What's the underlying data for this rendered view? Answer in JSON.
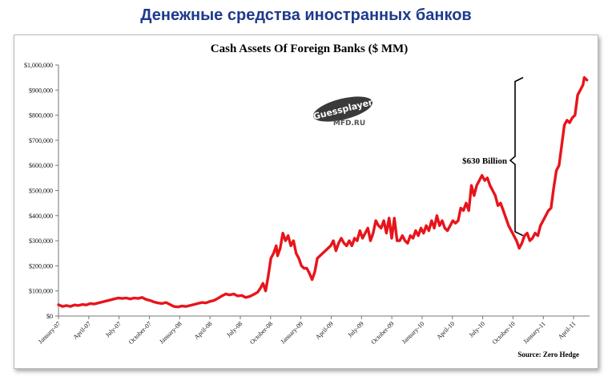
{
  "heading": "Денежные средства иностранных банков",
  "chart_data": {
    "type": "line",
    "title": "Cash Assets Of Foreign Banks ($ MM)",
    "source": "Source: Zero Hedge",
    "annotation": "$630 Billion",
    "watermark": {
      "line1": "Guessplayer",
      "line2": "MFD.RU"
    },
    "ylim": [
      0,
      1000000
    ],
    "y_ticks": [
      "$0",
      "$100,000",
      "$200,000",
      "$300,000",
      "$400,000",
      "$500,000",
      "$600,000",
      "$700,000",
      "$800,000",
      "$900,000",
      "$1,000,000"
    ],
    "x_ticks": [
      "January-07",
      "April-07",
      "July-07",
      "October-07",
      "January-08",
      "April-08",
      "July-08",
      "October-08",
      "January-09",
      "April-09",
      "July-09",
      "October-09",
      "January-10",
      "April-10",
      "July-10",
      "October-10",
      "January-11",
      "April-11"
    ],
    "grid": false,
    "line_color": "#e8141b",
    "series": [
      {
        "values": [
          [
            0.0,
            45000
          ],
          [
            0.3,
            38000
          ],
          [
            0.6,
            42000
          ],
          [
            0.9,
            38000
          ],
          [
            1.2,
            44000
          ],
          [
            1.5,
            42000
          ],
          [
            1.8,
            46000
          ],
          [
            2.1,
            44000
          ],
          [
            2.4,
            50000
          ],
          [
            2.7,
            48000
          ],
          [
            3.0,
            52000
          ],
          [
            3.3,
            56000
          ],
          [
            3.6,
            60000
          ],
          [
            3.9,
            64000
          ],
          [
            4.2,
            68000
          ],
          [
            4.5,
            72000
          ],
          [
            4.8,
            70000
          ],
          [
            5.1,
            72000
          ],
          [
            5.4,
            68000
          ],
          [
            5.7,
            72000
          ],
          [
            6.0,
            70000
          ],
          [
            6.3,
            74000
          ],
          [
            6.6,
            66000
          ],
          [
            6.9,
            62000
          ],
          [
            7.2,
            56000
          ],
          [
            7.5,
            52000
          ],
          [
            7.8,
            50000
          ],
          [
            8.1,
            54000
          ],
          [
            8.4,
            46000
          ],
          [
            8.7,
            38000
          ],
          [
            9.0,
            36000
          ],
          [
            9.3,
            40000
          ],
          [
            9.6,
            38000
          ],
          [
            9.9,
            42000
          ],
          [
            10.2,
            46000
          ],
          [
            10.5,
            50000
          ],
          [
            10.8,
            54000
          ],
          [
            11.1,
            52000
          ],
          [
            11.4,
            58000
          ],
          [
            11.7,
            62000
          ],
          [
            12.0,
            70000
          ],
          [
            12.3,
            80000
          ],
          [
            12.6,
            88000
          ],
          [
            12.9,
            84000
          ],
          [
            13.2,
            88000
          ],
          [
            13.5,
            80000
          ],
          [
            13.8,
            82000
          ],
          [
            14.1,
            74000
          ],
          [
            14.4,
            78000
          ],
          [
            14.7,
            86000
          ],
          [
            15.0,
            95000
          ],
          [
            15.2,
            110000
          ],
          [
            15.4,
            130000
          ],
          [
            15.6,
            100000
          ],
          [
            15.8,
            160000
          ],
          [
            16.0,
            230000
          ],
          [
            16.2,
            250000
          ],
          [
            16.4,
            280000
          ],
          [
            16.5,
            240000
          ],
          [
            16.7,
            270000
          ],
          [
            16.9,
            330000
          ],
          [
            17.1,
            300000
          ],
          [
            17.3,
            320000
          ],
          [
            17.5,
            280000
          ],
          [
            17.7,
            300000
          ],
          [
            17.9,
            250000
          ],
          [
            18.1,
            230000
          ],
          [
            18.3,
            200000
          ],
          [
            18.5,
            190000
          ],
          [
            18.7,
            190000
          ],
          [
            18.9,
            170000
          ],
          [
            19.1,
            145000
          ],
          [
            19.3,
            175000
          ],
          [
            19.5,
            230000
          ],
          [
            19.7,
            240000
          ],
          [
            19.9,
            250000
          ],
          [
            20.1,
            260000
          ],
          [
            20.3,
            270000
          ],
          [
            20.5,
            280000
          ],
          [
            20.7,
            300000
          ],
          [
            20.9,
            260000
          ],
          [
            21.1,
            290000
          ],
          [
            21.3,
            310000
          ],
          [
            21.5,
            290000
          ],
          [
            21.7,
            280000
          ],
          [
            21.9,
            300000
          ],
          [
            22.1,
            280000
          ],
          [
            22.3,
            310000
          ],
          [
            22.5,
            300000
          ],
          [
            22.7,
            340000
          ],
          [
            22.9,
            310000
          ],
          [
            23.1,
            330000
          ],
          [
            23.3,
            350000
          ],
          [
            23.5,
            300000
          ],
          [
            23.7,
            330000
          ],
          [
            23.9,
            380000
          ],
          [
            24.1,
            360000
          ],
          [
            24.3,
            350000
          ],
          [
            24.5,
            380000
          ],
          [
            24.7,
            330000
          ],
          [
            24.9,
            390000
          ],
          [
            25.1,
            310000
          ],
          [
            25.3,
            390000
          ],
          [
            25.5,
            300000
          ],
          [
            25.7,
            300000
          ],
          [
            25.9,
            320000
          ],
          [
            26.1,
            300000
          ],
          [
            26.3,
            290000
          ],
          [
            26.5,
            320000
          ],
          [
            26.7,
            310000
          ],
          [
            26.9,
            340000
          ],
          [
            27.1,
            320000
          ],
          [
            27.3,
            350000
          ],
          [
            27.5,
            330000
          ],
          [
            27.7,
            360000
          ],
          [
            27.9,
            340000
          ],
          [
            28.1,
            380000
          ],
          [
            28.3,
            350000
          ],
          [
            28.5,
            400000
          ],
          [
            28.7,
            360000
          ],
          [
            28.9,
            380000
          ],
          [
            29.1,
            350000
          ],
          [
            29.3,
            340000
          ],
          [
            29.5,
            360000
          ],
          [
            29.7,
            380000
          ],
          [
            29.9,
            370000
          ],
          [
            30.1,
            380000
          ],
          [
            30.3,
            430000
          ],
          [
            30.5,
            420000
          ],
          [
            30.7,
            450000
          ],
          [
            30.9,
            420000
          ],
          [
            31.1,
            520000
          ],
          [
            31.3,
            480000
          ],
          [
            31.5,
            520000
          ],
          [
            31.7,
            540000
          ],
          [
            31.9,
            560000
          ],
          [
            32.1,
            540000
          ],
          [
            32.3,
            550000
          ],
          [
            32.5,
            520000
          ],
          [
            32.7,
            500000
          ],
          [
            32.9,
            480000
          ],
          [
            33.1,
            440000
          ],
          [
            33.3,
            450000
          ],
          [
            33.5,
            420000
          ],
          [
            33.7,
            390000
          ],
          [
            33.9,
            360000
          ],
          [
            34.1,
            340000
          ],
          [
            34.3,
            320000
          ],
          [
            34.5,
            300000
          ],
          [
            34.7,
            270000
          ],
          [
            34.9,
            290000
          ],
          [
            35.1,
            320000
          ],
          [
            35.3,
            330000
          ],
          [
            35.5,
            300000
          ],
          [
            35.7,
            310000
          ],
          [
            35.9,
            330000
          ],
          [
            36.1,
            320000
          ],
          [
            36.3,
            360000
          ],
          [
            36.5,
            380000
          ],
          [
            36.7,
            400000
          ],
          [
            36.9,
            420000
          ],
          [
            37.1,
            430000
          ],
          [
            37.3,
            510000
          ],
          [
            37.5,
            580000
          ],
          [
            37.7,
            600000
          ],
          [
            37.9,
            680000
          ],
          [
            38.1,
            760000
          ],
          [
            38.3,
            780000
          ],
          [
            38.5,
            770000
          ],
          [
            38.7,
            790000
          ],
          [
            38.9,
            800000
          ],
          [
            39.1,
            880000
          ],
          [
            39.3,
            900000
          ],
          [
            39.5,
            920000
          ],
          [
            39.6,
            950000
          ],
          [
            39.8,
            940000
          ]
        ]
      }
    ],
    "x_max": 40
  }
}
